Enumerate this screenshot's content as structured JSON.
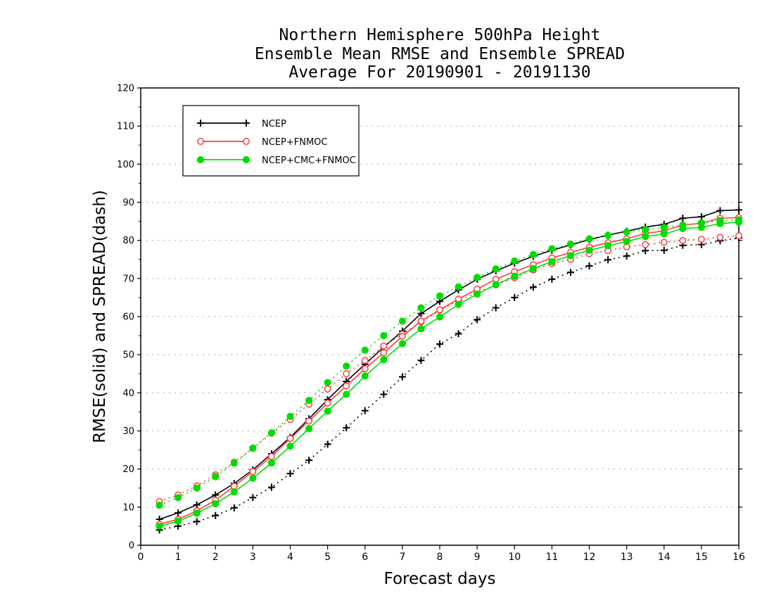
{
  "chart_data": {
    "type": "line",
    "title": [
      "Northern Hemisphere 500hPa Height",
      "Ensemble Mean RMSE and Ensemble SPREAD",
      "Average For 20190901 - 20191130"
    ],
    "xlabel": "Forecast days",
    "ylabel": "RMSE(solid) and SPREAD(dash)",
    "xlim": [
      0,
      16
    ],
    "ylim": [
      0,
      120
    ],
    "xticks": [
      "0",
      "1",
      "2",
      "3",
      "4",
      "5",
      "6",
      "7",
      "8",
      "9",
      "10",
      "11",
      "12",
      "13",
      "14",
      "15",
      "16"
    ],
    "yticks": [
      "0",
      "10",
      "20",
      "30",
      "40",
      "50",
      "60",
      "70",
      "80",
      "90",
      "100",
      "110",
      "120"
    ],
    "grid": true,
    "legend_position": "top-left",
    "x": [
      0.5,
      1,
      1.5,
      2,
      2.5,
      3,
      3.5,
      4,
      4.5,
      5,
      5.5,
      6,
      6.5,
      7,
      7.5,
      8,
      8.5,
      9,
      9.5,
      10,
      10.5,
      11,
      11.5,
      12,
      12.5,
      13,
      13.5,
      14,
      14.5,
      15,
      15.5,
      16
    ],
    "series": [
      {
        "name": "NCEP",
        "color": "#000000",
        "marker": "plus",
        "rmse": [
          6.8,
          8.5,
          10.6,
          13.2,
          16.2,
          19.8,
          24.0,
          28.3,
          33.2,
          38.2,
          43.0,
          47.5,
          52.0,
          56.2,
          60.8,
          64.0,
          67.0,
          69.8,
          72.0,
          74.0,
          75.8,
          77.4,
          78.8,
          80.2,
          81.4,
          82.4,
          83.5,
          84.2,
          85.8,
          86.2,
          87.8,
          88.0
        ],
        "spread": [
          4.0,
          5.0,
          6.2,
          7.8,
          9.8,
          12.5,
          15.2,
          18.8,
          22.3,
          26.5,
          30.8,
          35.3,
          39.6,
          44.2,
          48.5,
          52.8,
          55.5,
          59.2,
          62.3,
          65.0,
          67.7,
          69.8,
          71.6,
          73.3,
          74.9,
          75.9,
          77.3,
          77.4,
          78.7,
          78.9,
          79.9,
          80.6
        ]
      },
      {
        "name": "NCEP+FNMOC",
        "color": "#ff3b3b",
        "marker": "open-circle",
        "rmse": [
          5.5,
          6.8,
          9.0,
          11.8,
          15.5,
          19.3,
          23.3,
          28.0,
          32.6,
          37.3,
          41.8,
          46.3,
          50.5,
          54.8,
          58.8,
          61.8,
          64.6,
          67.2,
          69.8,
          71.8,
          73.6,
          75.4,
          76.8,
          78.2,
          79.4,
          80.4,
          81.8,
          82.5,
          84.0,
          84.5,
          85.8,
          86.0
        ],
        "spread": [
          11.5,
          13.2,
          15.6,
          18.5,
          21.8,
          25.4,
          29.4,
          33.0,
          37.0,
          41.0,
          45.0,
          48.5,
          52.3,
          55.4,
          58.6,
          61.7,
          64.2,
          66.2,
          68.3,
          70.2,
          72.2,
          73.9,
          75.0,
          76.5,
          77.3,
          78.3,
          78.9,
          79.5,
          80.0,
          80.3,
          80.8,
          81.2
        ]
      },
      {
        "name": "NCEP+CMC+FNMOC",
        "color": "#00dd00",
        "marker": "filled-circle",
        "rmse": [
          5.0,
          6.3,
          8.4,
          10.9,
          14.0,
          17.6,
          21.6,
          26.0,
          30.6,
          35.2,
          39.6,
          44.4,
          48.7,
          52.9,
          56.8,
          59.9,
          63.2,
          65.9,
          68.4,
          70.6,
          72.6,
          74.4,
          76.0,
          77.4,
          78.6,
          79.7,
          81.0,
          81.7,
          83.1,
          83.4,
          84.4,
          84.8
        ],
        "spread": [
          10.5,
          12.5,
          15.0,
          18.0,
          21.5,
          25.5,
          29.5,
          33.8,
          38.0,
          42.7,
          47.0,
          51.2,
          55.0,
          58.8,
          62.3,
          65.4,
          67.8,
          70.3,
          72.5,
          74.6,
          76.3,
          77.8,
          79.0,
          80.4,
          81.3,
          82.2,
          82.8,
          83.4,
          84.0,
          84.6,
          85.2,
          85.4
        ]
      }
    ]
  }
}
